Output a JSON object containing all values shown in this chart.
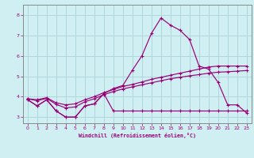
{
  "xlabel": "Windchill (Refroidissement éolien,°C)",
  "background_color": "#d0eff2",
  "line_color": "#990077",
  "grid_color": "#b0d8dc",
  "spine_color": "#888888",
  "xlim": [
    -0.5,
    23.5
  ],
  "ylim": [
    2.7,
    8.5
  ],
  "yticks": [
    3,
    4,
    5,
    6,
    7,
    8
  ],
  "xticks": [
    0,
    1,
    2,
    3,
    4,
    5,
    6,
    7,
    8,
    9,
    10,
    11,
    12,
    13,
    14,
    15,
    16,
    17,
    18,
    19,
    20,
    21,
    22,
    23
  ],
  "line_main_x": [
    0,
    1,
    2,
    3,
    4,
    5,
    6,
    7,
    8,
    9,
    10,
    11,
    12,
    13,
    14,
    15,
    16,
    17,
    18,
    19,
    20,
    21,
    22,
    23
  ],
  "line_main_y": [
    3.85,
    3.55,
    3.85,
    3.3,
    3.0,
    3.0,
    3.55,
    3.65,
    4.15,
    4.4,
    4.55,
    5.3,
    6.0,
    7.1,
    7.85,
    7.5,
    7.25,
    6.8,
    5.5,
    5.35,
    4.7,
    3.6,
    3.6,
    3.2
  ],
  "line_flat_x": [
    0,
    1,
    2,
    3,
    4,
    5,
    6,
    7,
    8,
    9,
    10,
    11,
    12,
    13,
    14,
    15,
    16,
    17,
    18,
    19,
    20,
    21,
    22,
    23
  ],
  "line_flat_y": [
    3.85,
    3.55,
    3.85,
    3.3,
    3.0,
    3.0,
    3.55,
    3.65,
    4.15,
    3.3,
    3.3,
    3.3,
    3.3,
    3.3,
    3.3,
    3.3,
    3.3,
    3.3,
    3.3,
    3.3,
    3.3,
    3.3,
    3.3,
    3.3
  ],
  "line_upper_x": [
    0,
    1,
    2,
    3,
    4,
    5,
    6,
    7,
    8,
    9,
    10,
    11,
    12,
    13,
    14,
    15,
    16,
    17,
    18,
    19,
    20,
    21,
    22,
    23
  ],
  "line_upper_y": [
    3.9,
    3.85,
    3.95,
    3.7,
    3.6,
    3.65,
    3.85,
    4.0,
    4.2,
    4.35,
    4.5,
    4.6,
    4.72,
    4.85,
    4.95,
    5.05,
    5.15,
    5.25,
    5.35,
    5.45,
    5.5,
    5.5,
    5.5,
    5.5
  ],
  "line_lower_x": [
    0,
    1,
    2,
    3,
    4,
    5,
    6,
    7,
    8,
    9,
    10,
    11,
    12,
    13,
    14,
    15,
    16,
    17,
    18,
    19,
    20,
    21,
    22,
    23
  ],
  "line_lower_y": [
    3.9,
    3.8,
    3.92,
    3.62,
    3.45,
    3.5,
    3.75,
    3.9,
    4.1,
    4.25,
    4.38,
    4.48,
    4.58,
    4.68,
    4.78,
    4.88,
    4.95,
    5.02,
    5.08,
    5.15,
    5.2,
    5.22,
    5.25,
    5.28
  ]
}
